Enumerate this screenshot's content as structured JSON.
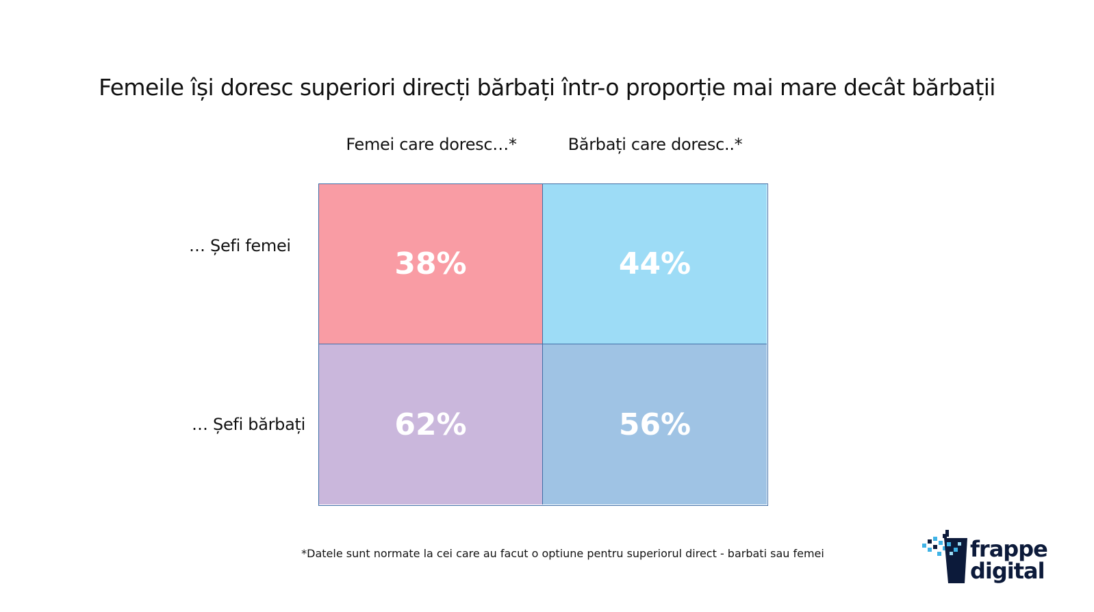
{
  "chart_data": {
    "type": "table",
    "title": "Femeile își doresc superiori direcți bărbați într-o proporție mai mare decât bărbații",
    "columns": [
      "Femei  care doresc…*",
      "Bărbați care doresc..*"
    ],
    "rows": [
      "… Șefi femei",
      "… Șefi bărbați"
    ],
    "values": [
      [
        38,
        44
      ],
      [
        62,
        56
      ]
    ],
    "value_labels": [
      [
        "38%",
        "44%"
      ],
      [
        "62%",
        "56%"
      ]
    ],
    "colors": [
      [
        "#f99ca4",
        "#9ddcf6"
      ],
      [
        "#cab7dc",
        "#9fc3e4"
      ]
    ],
    "footnote": "*Datele sunt normate la cei care au facut o optiune pentru superiorul direct -  barbati sau femei"
  },
  "logo": {
    "line1": "frappe",
    "line2": "digital"
  }
}
